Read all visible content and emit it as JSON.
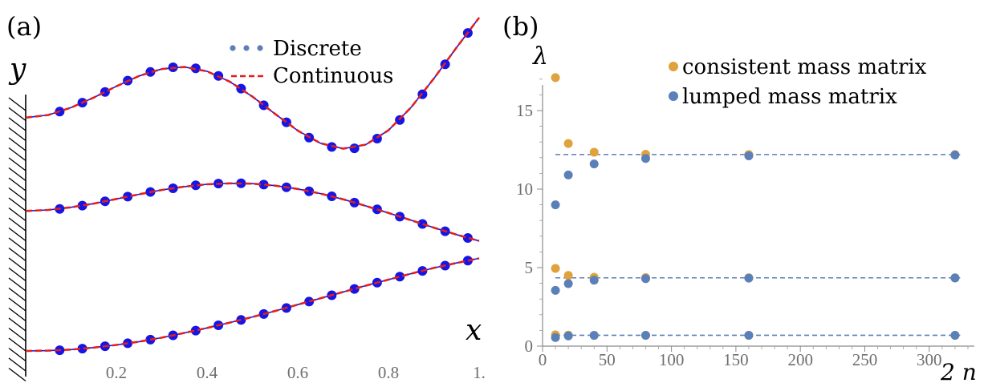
{
  "panels": [
    {
      "tag": "(a)",
      "chart_data": {
        "type": "line",
        "xlabel": "x",
        "ylabel": "y",
        "xlim": [
          0,
          1
        ],
        "x_ticks": [
          "0.2",
          "0.4",
          "0.6",
          "0.8",
          "1."
        ],
        "x_tick_values": [
          0.2,
          0.4,
          0.6,
          0.8,
          1.0
        ],
        "y_range_units": [
          0,
          1
        ],
        "legend": {
          "position": "top-center",
          "entries": [
            "Discrete",
            "Continuous"
          ]
        },
        "colors": {
          "discrete": "#1515e6",
          "continuous": "#e0201c",
          "legend_dots": "#5b7fb8"
        },
        "offsets": [
          0.0,
          0.42,
          0.7
        ],
        "x": [
          0.075,
          0.125,
          0.175,
          0.225,
          0.275,
          0.325,
          0.375,
          0.425,
          0.475,
          0.525,
          0.575,
          0.625,
          0.675,
          0.725,
          0.775,
          0.825,
          0.875,
          0.925,
          0.975
        ],
        "series": [
          {
            "curve_x": [
              0,
              0.05,
              0.1,
              0.15,
              0.2,
              0.25,
              0.3,
              0.35,
              0.4,
              0.45,
              0.5,
              0.55,
              0.6,
              0.65,
              0.7,
              0.75,
              0.8,
              0.85,
              0.9,
              0.95,
              1.0
            ],
            "curve_y": [
              0.0,
              0.001,
              0.004,
              0.01,
              0.018,
              0.028,
              0.04,
              0.054,
              0.069,
              0.085,
              0.102,
              0.12,
              0.139,
              0.158,
              0.177,
              0.196,
              0.214,
              0.232,
              0.249,
              0.264,
              0.278
            ],
            "discrete_y": [
              0.002,
              0.007,
              0.014,
              0.023,
              0.034,
              0.047,
              0.061,
              0.077,
              0.093,
              0.111,
              0.129,
              0.148,
              0.167,
              0.186,
              0.205,
              0.223,
              0.24,
              0.256,
              0.271
            ]
          },
          {
            "curve_x": [
              0,
              0.05,
              0.1,
              0.15,
              0.2,
              0.25,
              0.3,
              0.35,
              0.4,
              0.45,
              0.5,
              0.55,
              0.6,
              0.65,
              0.7,
              0.75,
              0.8,
              0.85,
              0.9,
              0.95,
              1.0
            ],
            "curve_y": [
              0.0,
              0.003,
              0.011,
              0.022,
              0.036,
              0.05,
              0.063,
              0.073,
              0.08,
              0.083,
              0.082,
              0.076,
              0.066,
              0.052,
              0.035,
              0.015,
              -0.006,
              -0.028,
              -0.05,
              -0.071,
              -0.09
            ],
            "discrete_y": [
              0.006,
              0.016,
              0.029,
              0.043,
              0.057,
              0.068,
              0.077,
              0.082,
              0.083,
              0.079,
              0.071,
              0.059,
              0.044,
              0.025,
              0.005,
              -0.017,
              -0.039,
              -0.061,
              -0.081
            ]
          },
          {
            "curve_x": [
              0,
              0.05,
              0.1,
              0.15,
              0.2,
              0.25,
              0.3,
              0.35,
              0.4,
              0.45,
              0.5,
              0.55,
              0.6,
              0.65,
              0.7,
              0.75,
              0.8,
              0.85,
              0.9,
              0.95,
              1.0
            ],
            "curve_y": [
              0.0,
              0.008,
              0.03,
              0.06,
              0.094,
              0.125,
              0.146,
              0.152,
              0.139,
              0.108,
              0.063,
              0.011,
              -0.039,
              -0.077,
              -0.093,
              -0.081,
              -0.038,
              0.031,
              0.117,
              0.21,
              0.3
            ],
            "discrete_y": [
              0.018,
              0.045,
              0.077,
              0.111,
              0.137,
              0.151,
              0.148,
              0.125,
              0.087,
              0.037,
              -0.014,
              -0.06,
              -0.088,
              -0.092,
              -0.063,
              -0.007,
              0.07,
              0.16,
              0.254
            ]
          }
        ]
      }
    },
    {
      "tag": "(b)",
      "chart_data": {
        "type": "scatter",
        "xlabel": "2 n",
        "ylabel": "λ",
        "xlim": [
          0,
          335
        ],
        "ylim": [
          0,
          17.5
        ],
        "x_ticks": [
          0,
          50,
          100,
          150,
          200,
          250,
          300
        ],
        "y_ticks": [
          0,
          5,
          10,
          15
        ],
        "legend": {
          "position": "top-right"
        },
        "reference_lines": [
          0.69,
          4.35,
          12.2
        ],
        "reference_line_color": "#5b7fb8",
        "series": [
          {
            "name": "consistent mass matrix",
            "color": "#e0a23c",
            "x": [
              10,
              20,
              40,
              80,
              160,
              320,
              10,
              20,
              40,
              80,
              160,
              320,
              10,
              20,
              40,
              80,
              160,
              320
            ],
            "y": [
              0.72,
              0.7,
              0.69,
              0.69,
              0.69,
              0.69,
              4.95,
              4.5,
              4.39,
              4.36,
              4.35,
              4.35,
              17.1,
              12.9,
              12.35,
              12.22,
              12.2,
              12.2
            ]
          },
          {
            "name": "lumped mass matrix",
            "color": "#5b7fb8",
            "x": [
              10,
              20,
              40,
              80,
              160,
              320,
              10,
              20,
              40,
              80,
              160,
              320,
              10,
              20,
              40,
              80,
              160,
              320
            ],
            "y": [
              0.55,
              0.65,
              0.68,
              0.69,
              0.69,
              0.69,
              3.55,
              3.98,
              4.2,
              4.3,
              4.33,
              4.34,
              9.0,
              10.9,
              11.6,
              11.95,
              12.12,
              12.17
            ]
          }
        ]
      }
    }
  ]
}
